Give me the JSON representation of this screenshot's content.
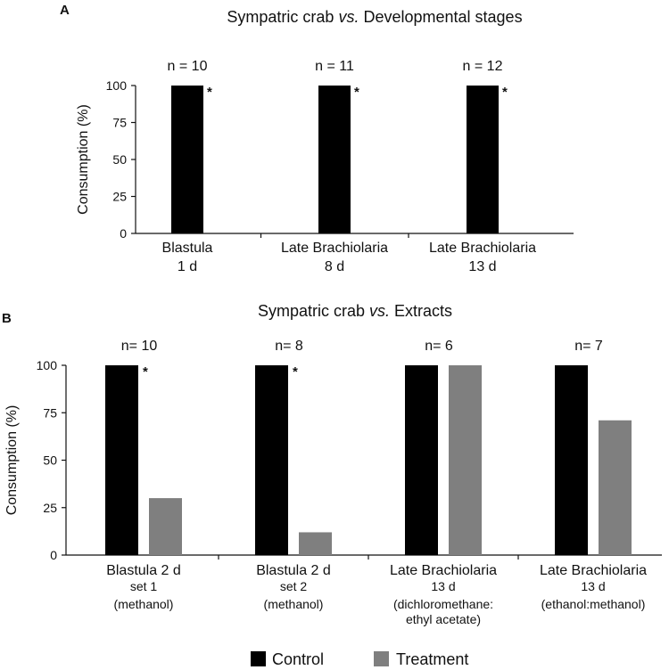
{
  "panels": [
    {
      "letter": "A",
      "title_parts": [
        "Sympatric crab ",
        "vs.",
        " Developmental stages"
      ],
      "ylabel": "Consumption (%)",
      "yticks": [
        "100",
        "75",
        "50",
        "25",
        "0"
      ],
      "categories": [
        {
          "lines": [
            "Blastula",
            "1 d"
          ],
          "n": "n = 10",
          "star": "*"
        },
        {
          "lines": [
            "Late Brachiolaria",
            "8 d"
          ],
          "n": "n = 11",
          "star": "*"
        },
        {
          "lines": [
            "Late Brachiolaria",
            "13 d"
          ],
          "n": "n = 12",
          "star": "*"
        }
      ]
    },
    {
      "letter": "B",
      "title_parts": [
        "Sympatric crab ",
        "vs.",
        " Extracts"
      ],
      "ylabel": "Consumption (%)",
      "yticks": [
        "100",
        "75",
        "50",
        "25",
        "0"
      ],
      "categories": [
        {
          "lines": [
            "Blastula 2 d",
            "set 1",
            "(methanol)"
          ],
          "n": "n= 10",
          "star": "*"
        },
        {
          "lines": [
            "Blastula 2 d",
            "set 2",
            "(methanol)"
          ],
          "n": "n= 8",
          "star": "*"
        },
        {
          "lines": [
            "Late Brachiolaria",
            "13 d",
            "(dichloromethane:",
            "ethyl acetate)"
          ],
          "n": "n= 6",
          "star": ""
        },
        {
          "lines": [
            "Late Brachiolaria",
            "13 d",
            "(ethanol:methanol)"
          ],
          "n": "n= 7",
          "star": ""
        }
      ]
    }
  ],
  "legend": [
    {
      "label": "Control",
      "color": "#000000"
    },
    {
      "label": "Treatment",
      "color": "#7f7f7f"
    }
  ],
  "chart_data": [
    {
      "type": "bar",
      "title": "Sympatric crab vs. Developmental stages",
      "xlabel": "",
      "ylabel": "Consumption (%)",
      "ylim": [
        0,
        100
      ],
      "grid": false,
      "categories": [
        "Blastula 1 d",
        "Late Brachiolaria 8 d",
        "Late Brachiolaria 13 d"
      ],
      "series": [
        {
          "name": "Control",
          "color": "#000000",
          "values": [
            100,
            100,
            100
          ]
        }
      ],
      "annotations": [
        "n = 10",
        "n = 11",
        "n = 12",
        "*",
        "*",
        "*"
      ]
    },
    {
      "type": "bar",
      "title": "Sympatric crab vs. Extracts",
      "xlabel": "",
      "ylabel": "Consumption (%)",
      "ylim": [
        0,
        100
      ],
      "grid": false,
      "legend_position": "bottom",
      "categories": [
        "Blastula 2 d set 1 (methanol)",
        "Blastula 2 d set 2 (methanol)",
        "Late Brachiolaria 13 d (dichloromethane: ethyl acetate)",
        "Late Brachiolaria 13 d (ethanol:methanol)"
      ],
      "series": [
        {
          "name": "Control",
          "color": "#000000",
          "values": [
            100,
            100,
            100,
            100
          ]
        },
        {
          "name": "Treatment",
          "color": "#7f7f7f",
          "values": [
            30,
            12,
            100,
            71
          ]
        }
      ],
      "annotations": [
        "n= 10",
        "n= 8",
        "n= 6",
        "n= 7",
        "*",
        "*"
      ]
    }
  ]
}
